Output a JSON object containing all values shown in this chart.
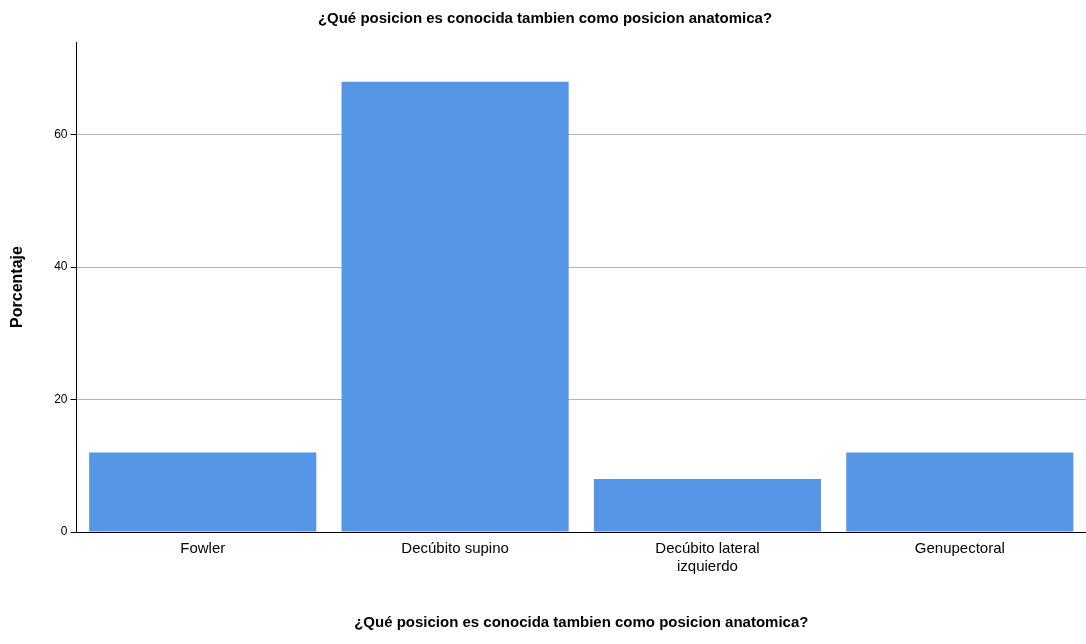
{
  "chart_data": {
    "type": "bar",
    "title": "¿Qué posicion es conocida tambien como posicion anatomica?",
    "xlabel": "¿Qué posicion es conocida tambien como posicion anatomica?",
    "ylabel": "Porcentaje",
    "categories": [
      "Fowler",
      "Decúbito supino",
      "Decúbito lateral izquierdo",
      "Genupectoral"
    ],
    "values": [
      12,
      68,
      8,
      12
    ],
    "color": "#5596e6",
    "ylim": [
      0,
      74
    ],
    "yticks": [
      0,
      20,
      40,
      60
    ],
    "grid": "y",
    "legend": false
  }
}
